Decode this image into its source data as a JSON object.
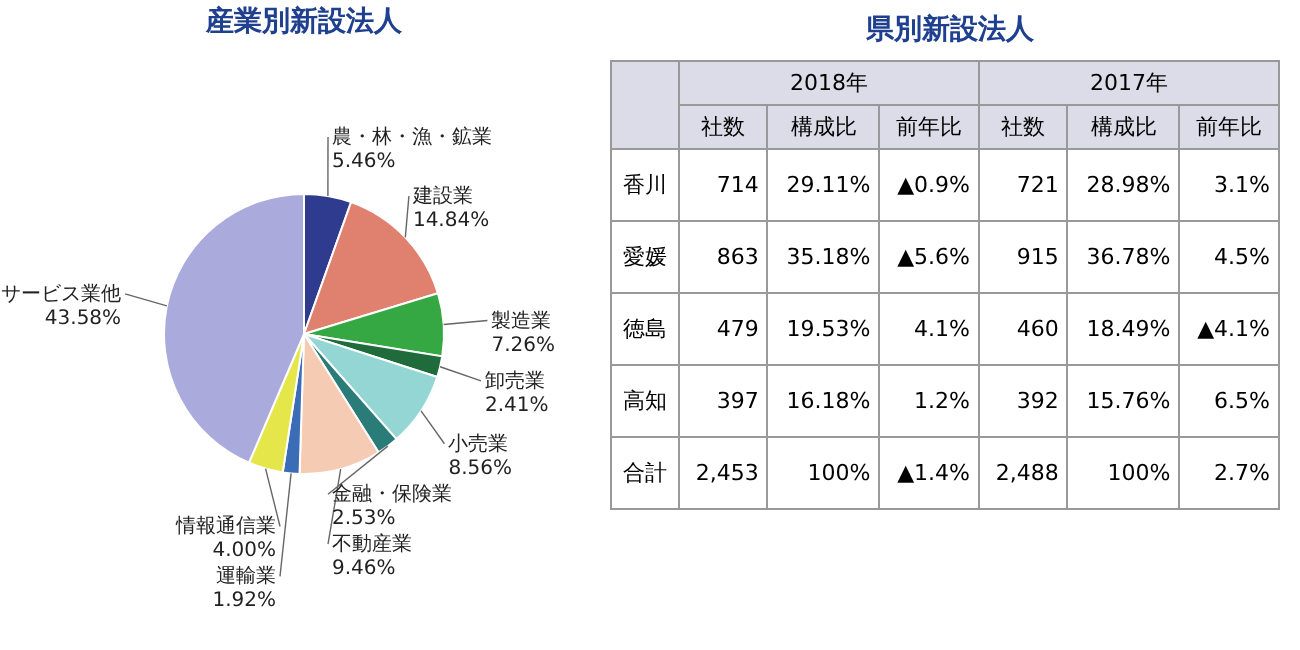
{
  "chart_data": [
    {
      "type": "pie",
      "title": "産業別新設法人",
      "categories": [
        "農・林・漁・鉱業",
        "建設業",
        "製造業",
        "卸売業",
        "小売業",
        "金融・保険業",
        "不動産業",
        "運輸業",
        "情報通信業",
        "サービス業他"
      ],
      "values": [
        5.46,
        14.84,
        7.26,
        2.41,
        8.56,
        2.53,
        9.46,
        1.92,
        4.0,
        43.58
      ],
      "value_labels": [
        "5.46%",
        "14.84%",
        "7.26%",
        "2.41%",
        "8.56%",
        "2.53%",
        "9.46%",
        "1.92%",
        "4.00%",
        "43.58%"
      ],
      "colors": [
        "#2e3b8e",
        "#e0806f",
        "#36a843",
        "#1f6b3b",
        "#93d6d4",
        "#2a7c78",
        "#f6cbb3",
        "#3a6db5",
        "#e4e64a",
        "#aaaadd"
      ]
    },
    {
      "type": "other",
      "title": "県別新設法人",
      "annotations": [
        "2018年",
        "2017年"
      ],
      "categories": [
        "社数",
        "構成比",
        "前年比",
        "社数",
        "構成比",
        "前年比"
      ],
      "y_categories": [
        "香川",
        "愛媛",
        "徳島",
        "高知",
        "合計"
      ],
      "cell_labels": [
        [
          "714",
          "29.11%",
          "▲0.9%",
          "721",
          "28.98%",
          "3.1%"
        ],
        [
          "863",
          "35.18%",
          "▲5.6%",
          "915",
          "36.78%",
          "4.5%"
        ],
        [
          "479",
          "19.53%",
          "4.1%",
          "460",
          "18.49%",
          "▲4.1%"
        ],
        [
          "397",
          "16.18%",
          "1.2%",
          "392",
          "15.76%",
          "6.5%"
        ],
        [
          "2,453",
          "100%",
          "▲1.4%",
          "2,488",
          "100%",
          "2.7%"
        ]
      ]
    }
  ]
}
